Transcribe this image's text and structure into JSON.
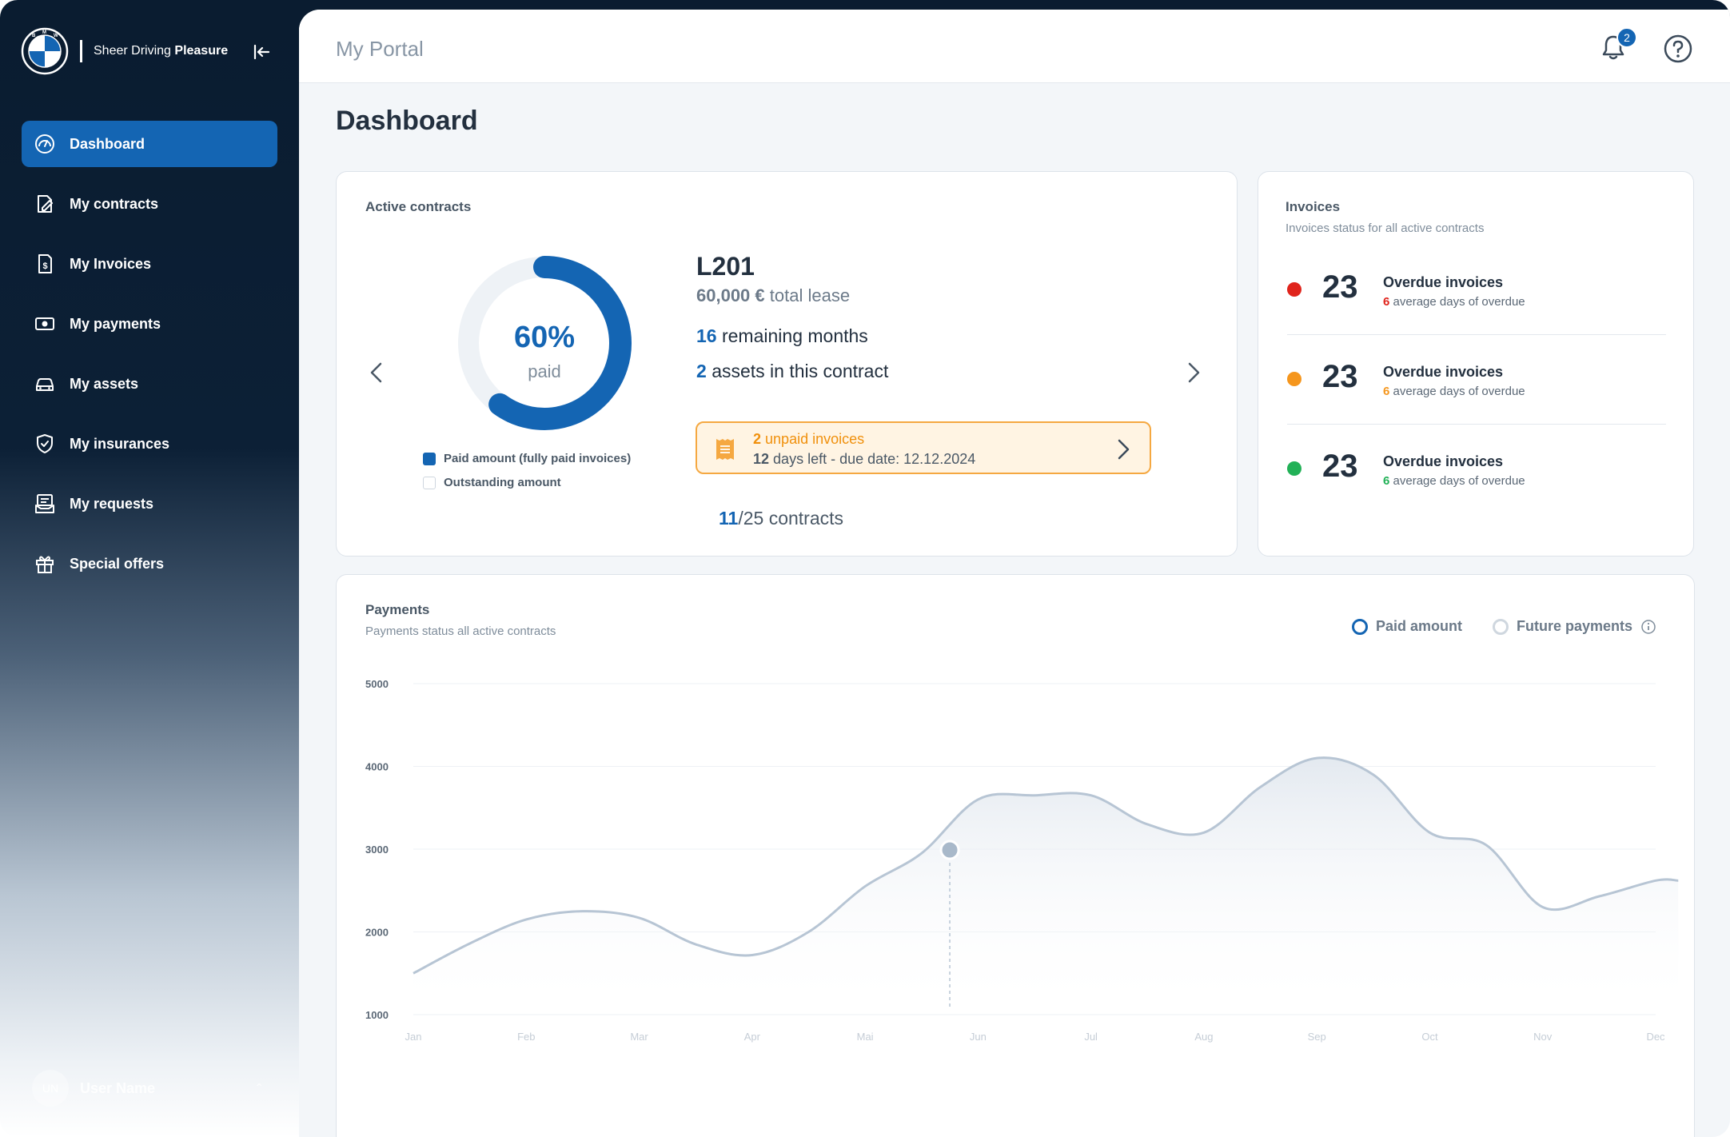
{
  "brand": {
    "tagline_prefix": "Sheer Driving",
    "tagline_bold": "Pleasure"
  },
  "sidebar": {
    "items": [
      {
        "label": "Dashboard",
        "icon": "dashboard-gauge-icon",
        "active": true
      },
      {
        "label": "My contracts",
        "icon": "contract-edit-icon",
        "active": false
      },
      {
        "label": "My Invoices",
        "icon": "invoice-dollar-icon",
        "active": false
      },
      {
        "label": "My payments",
        "icon": "payment-cash-icon",
        "active": false
      },
      {
        "label": "My assets",
        "icon": "car-icon",
        "active": false
      },
      {
        "label": "My insurances",
        "icon": "shield-check-icon",
        "active": false
      },
      {
        "label": "My requests",
        "icon": "requests-inbox-icon",
        "active": false
      },
      {
        "label": "Special offers",
        "icon": "gift-icon",
        "active": false
      }
    ],
    "user": {
      "initials": "UN",
      "name": "User Name"
    }
  },
  "header": {
    "portal_title": "My Portal",
    "notification_count": "2"
  },
  "page": {
    "title": "Dashboard"
  },
  "active_contracts": {
    "title": "Active contracts",
    "paid_percent": "60%",
    "paid_fraction": 0.6,
    "paid_label": "paid",
    "legend_paid": "Paid amount (fully paid invoices)",
    "legend_outstanding": "Outstanding amount",
    "contract_id": "L201",
    "lease_amount": "60,000 €",
    "lease_label": "total lease",
    "remaining_months": "16",
    "remaining_label": "remaining months",
    "assets_count": "2",
    "assets_label": "assets in this contract",
    "unpaid_count": "2",
    "unpaid_label": "unpaid invoices",
    "days_left": "12",
    "days_left_label": "days left - due date: 12.12.2024",
    "contracts_current": "11",
    "contracts_total_label": "/25 contracts"
  },
  "invoices": {
    "title": "Invoices",
    "subtitle": "Invoices status for all active contracts",
    "rows": [
      {
        "count": "23",
        "title": "Overdue invoices",
        "days": "6",
        "days_label": "average days of overdue",
        "color": "#e0241c"
      },
      {
        "count": "23",
        "title": "Overdue invoices",
        "days": "6",
        "days_label": "average days of overdue",
        "color": "#f5961d"
      },
      {
        "count": "23",
        "title": "Overdue invoices",
        "days": "6",
        "days_label": "average days of overdue",
        "color": "#22b157"
      }
    ]
  },
  "payments": {
    "title": "Payments",
    "subtitle": "Payments status all active contracts",
    "legend_paid": "Paid amount",
    "legend_future": "Future payments"
  },
  "chart_data": {
    "type": "line",
    "title": "Payments",
    "categories": [
      "Jan",
      "Feb",
      "Mar",
      "Apr",
      "Mai",
      "Jun",
      "Jul",
      "Aug",
      "Sep",
      "Oct",
      "Nov",
      "Dec"
    ],
    "x": [
      0,
      0.5,
      1,
      1.5,
      2,
      2.5,
      3,
      3.5,
      4,
      4.5,
      5,
      5.5,
      6,
      6.5,
      7,
      7.5,
      8,
      8.5,
      9,
      9.5,
      10,
      10.5,
      11,
      11.2
    ],
    "series": [
      {
        "name": "Paid amount",
        "values": [
          1500,
          1860,
          2150,
          2250,
          2170,
          1850,
          1720,
          2000,
          2550,
          2950,
          3600,
          3650,
          3650,
          3300,
          3200,
          3750,
          4100,
          3900,
          3200,
          3050,
          2300,
          2430,
          2620,
          2620
        ]
      }
    ],
    "highlight": {
      "x": 4.75,
      "value": 2990
    },
    "yticks": [
      1000,
      2000,
      3000,
      4000,
      5000
    ],
    "ylim": [
      1000,
      5000
    ],
    "grid": true,
    "legend": "top-right",
    "colors": {
      "line": "#b7c5d4",
      "fill_top": "#e6ebf1",
      "point": "#a9b9ca"
    }
  },
  "colors": {
    "accent": "#1465b3",
    "sidebar_bg": "#0a1c30",
    "warning": "#f0900c"
  }
}
